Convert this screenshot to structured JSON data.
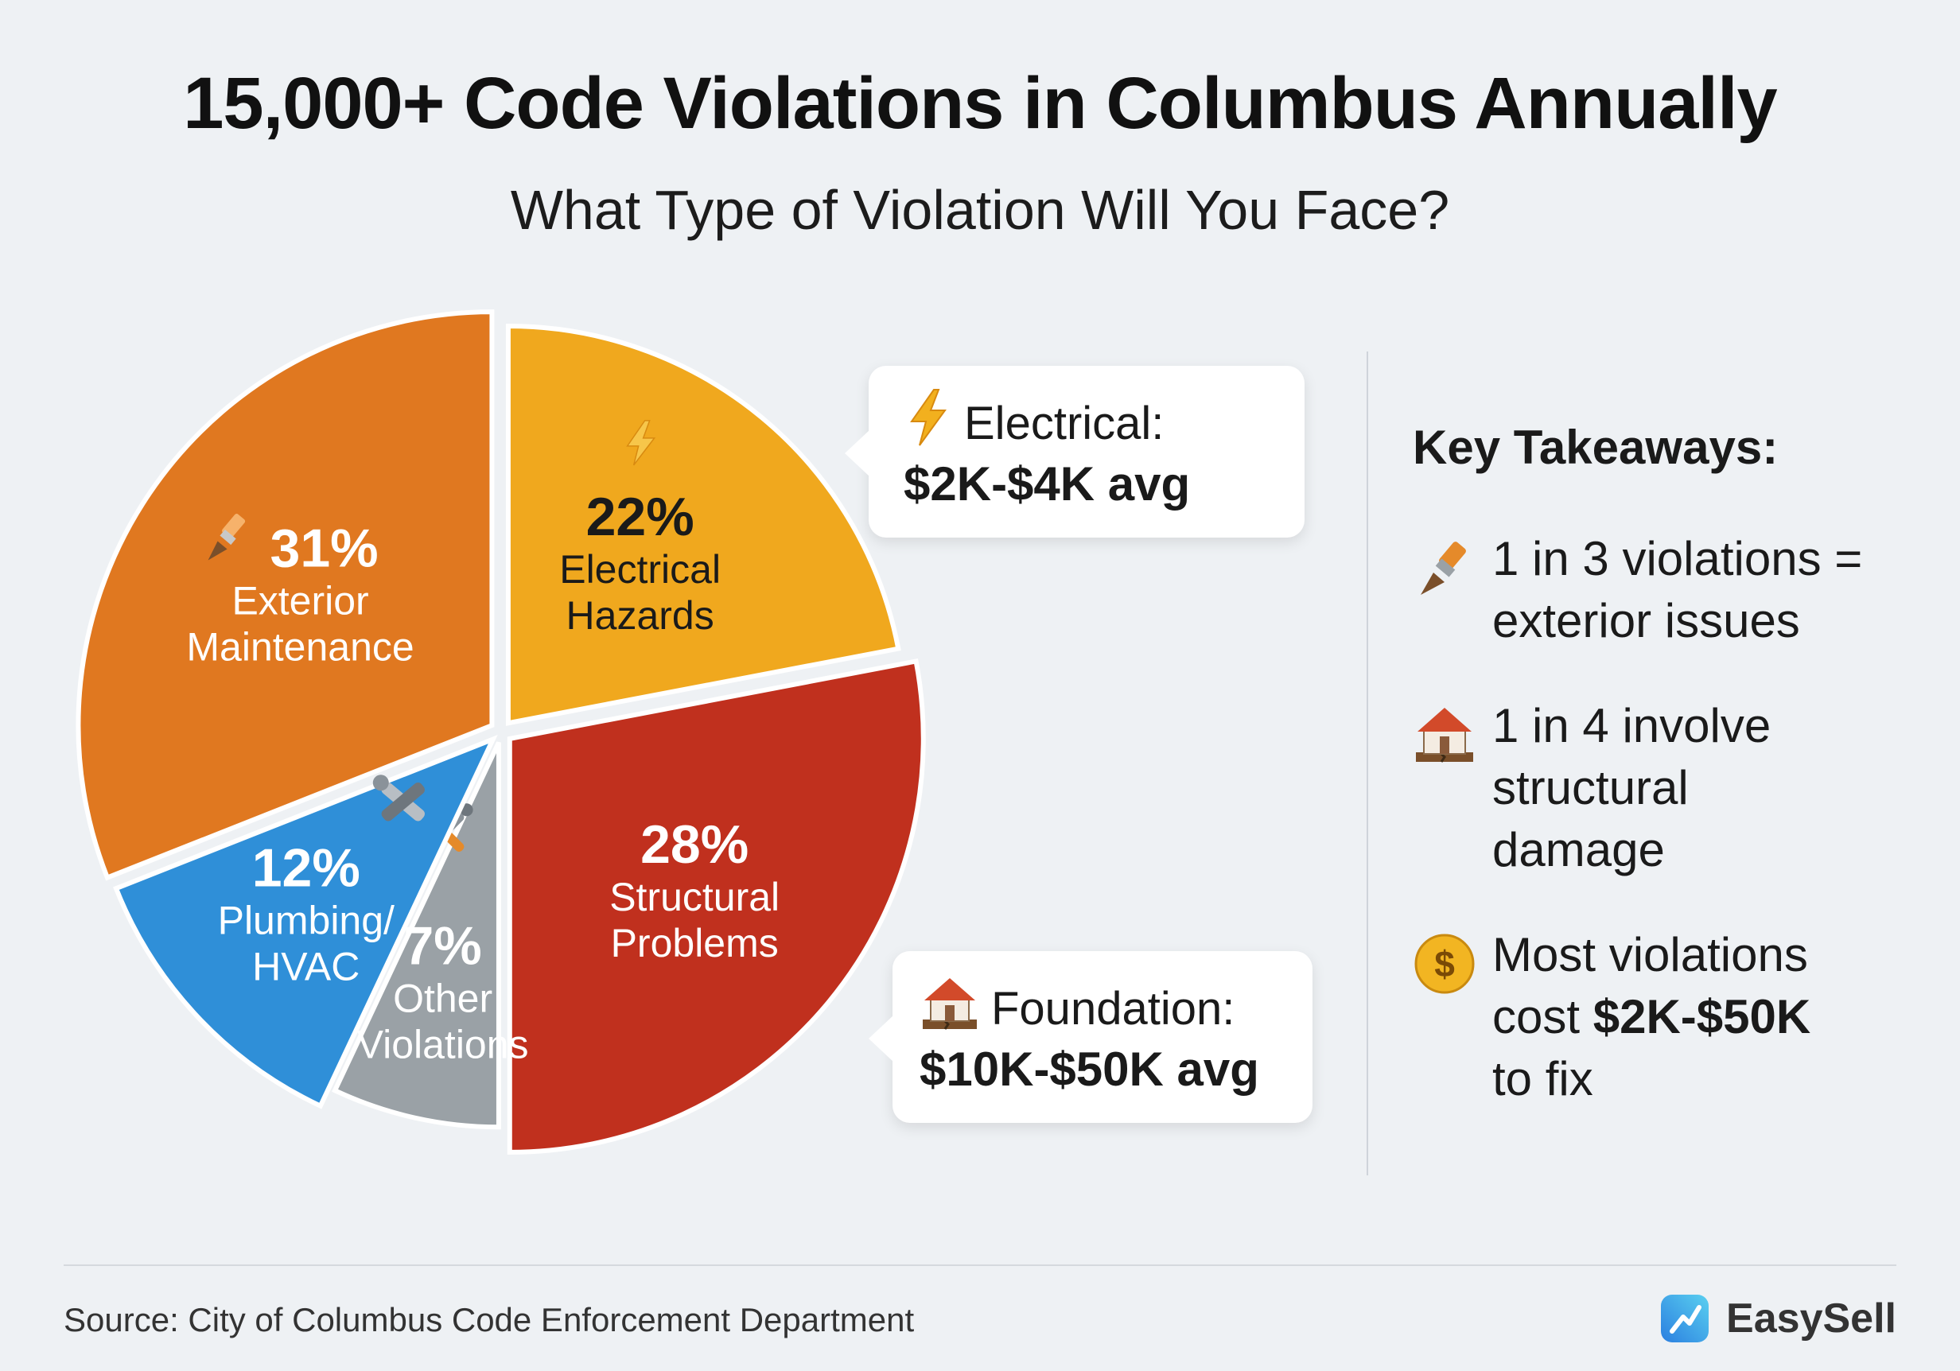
{
  "title": "15,000+ Code Violations in Columbus Annually",
  "subtitle": "What Type of Violation Will You Face?",
  "chart_data": {
    "type": "pie",
    "slices": [
      {
        "label_lines": [
          "Exterior",
          "Maintenance"
        ],
        "pct_label": "31%",
        "value": 31,
        "color": "#e07820",
        "icon": "paintbrush-icon"
      },
      {
        "label_lines": [
          "Electrical",
          "Hazards"
        ],
        "pct_label": "22%",
        "value": 22,
        "color": "#f0a81e",
        "icon": "lightning-icon"
      },
      {
        "label_lines": [
          "Structural",
          "Problems"
        ],
        "pct_label": "28%",
        "value": 28,
        "color": "#c0301e",
        "icon": ""
      },
      {
        "label_lines": [
          "Other",
          "Violations"
        ],
        "pct_label": "7%",
        "value": 7,
        "color": "#9aa1a6",
        "icon": "tools-icon"
      },
      {
        "label_lines": [
          "Plumbing/",
          "HVAC"
        ],
        "pct_label": "12%",
        "value": 12,
        "color": "#2f8fd8",
        "icon": "wrench-pipe-icon"
      }
    ]
  },
  "callouts": {
    "electrical": {
      "label": "Electrical:",
      "amount": "$2K-$4K avg"
    },
    "foundation": {
      "label": "Foundation:",
      "amount": "$10K-$50K avg"
    }
  },
  "takeaways": {
    "heading": "Key Takeaways:",
    "item1": {
      "line1": "1 in 3 violations =",
      "line2": "exterior issues"
    },
    "item2": {
      "line1": "1 in 4 involve",
      "line2": "structural",
      "line3": "damage"
    },
    "item3": {
      "line1": "Most violations",
      "pre": "cost ",
      "bold": "$2K-$50K",
      "line3": "to fix"
    }
  },
  "footer": {
    "source": "Source: City of Columbus Code Enforcement Department",
    "brand": "EasySell"
  },
  "colors": {
    "background": "#eef1f4",
    "exterior": "#e07820",
    "electrical": "#f0a81e",
    "structural": "#c0301e",
    "other": "#9aa1a6",
    "plumbing": "#2f8fd8"
  }
}
